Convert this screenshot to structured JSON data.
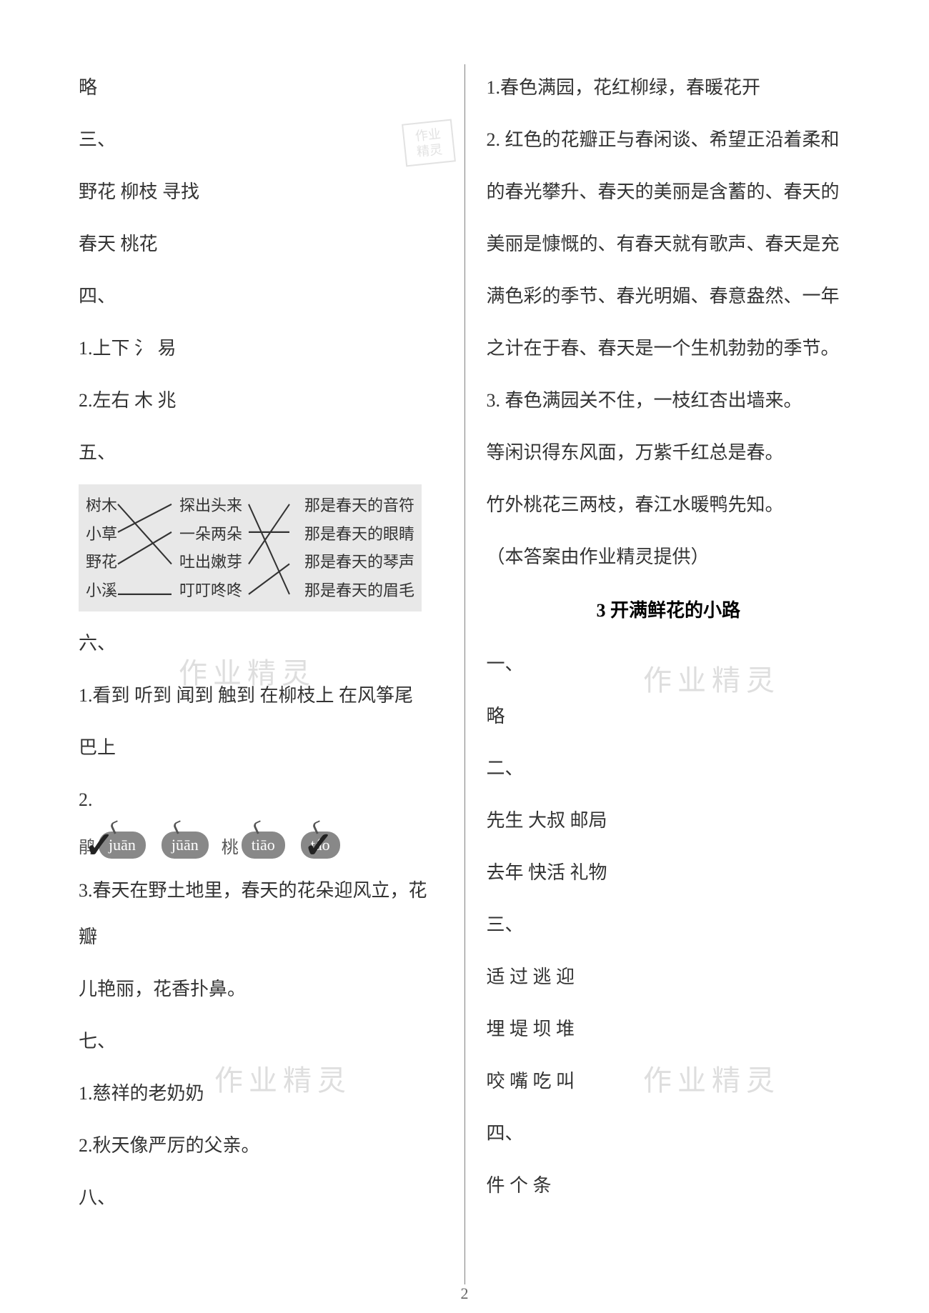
{
  "left": {
    "lines": [
      "略",
      "三、",
      "野花 柳枝 寻找",
      "春天 桃花",
      "四、",
      "1.上下 氵 易",
      "2.左右 木 兆",
      "五、"
    ],
    "match": {
      "left_items": [
        "树木",
        "小草",
        "野花",
        "小溪"
      ],
      "mid_items": [
        "探出头来",
        "一朵两朵",
        "吐出嫩芽",
        "叮叮咚咚"
      ],
      "right_items": [
        "那是春天的音符",
        "那是春天的眼睛",
        "那是春天的琴声",
        "那是春天的眉毛"
      ],
      "line_color": "#333333"
    },
    "after_match": [
      "六、",
      "1.看到 听到 闻到 触到 在柳枝上 在风筝尾",
      "巴上",
      "2."
    ],
    "pinyin": [
      {
        "char": "鹃",
        "pinyin": "juān",
        "checked": true
      },
      {
        "char": "",
        "pinyin": "jūān",
        "checked": false
      },
      {
        "char": "桃",
        "pinyin": "tiāo",
        "checked": false
      },
      {
        "char": "",
        "pinyin": "táo",
        "checked": true
      }
    ],
    "after_pinyin": [
      "3.春天在野土地里，春天的花朵迎风立，花瓣",
      "儿艳丽，花香扑鼻。",
      "七、",
      "1.慈祥的老奶奶",
      "2.秋天像严厉的父亲。",
      "八、"
    ]
  },
  "right": {
    "lines1": [
      "1.春色满园，花红柳绿，春暖花开",
      "2. 红色的花瓣正与春闲谈、希望正沿着柔和",
      "的春光攀升、春天的美丽是含蓄的、春天的",
      "美丽是慷慨的、有春天就有歌声、春天是充",
      "满色彩的季节、春光明媚、春意盎然、一年",
      "之计在于春、春天是一个生机勃勃的季节。",
      "3. 春色满园关不住，一枝红杏出墙来。",
      "等闲识得东风面，万紫千红总是春。",
      "竹外桃花三两枝，春江水暖鸭先知。",
      "（本答案由作业精灵提供）"
    ],
    "heading": "3 开满鲜花的小路",
    "lines2": [
      "一、",
      "略",
      "二、",
      "先生 大叔 邮局",
      "去年 快活 礼物",
      "三、",
      "适 过 逃 迎",
      "埋 堤 坝 堆",
      "咬 嘴 吃 叫",
      "四、",
      "件 个 条"
    ]
  },
  "watermarks": {
    "text": "作业精灵",
    "stamp_lines": [
      "作业",
      "精灵"
    ],
    "color": "rgba(160,160,160,0.35)"
  },
  "page_number": "2",
  "colors": {
    "text": "#333333",
    "bg": "#ffffff",
    "divider": "#808080",
    "bubble_bg": "#888888",
    "bubble_fg": "#ffffff",
    "imgbox_bg": "#e8e8e8"
  }
}
